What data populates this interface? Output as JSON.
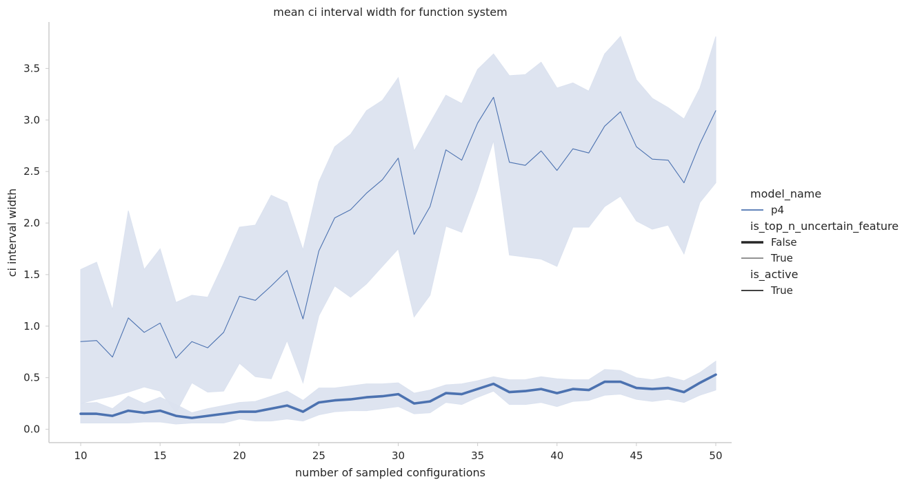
{
  "chart_data": {
    "type": "line",
    "title": "mean ci interval width for function system",
    "xlabel": "number of sampled configurations",
    "ylabel": "ci interval width",
    "xlim": [
      8,
      51
    ],
    "ylim": [
      -0.13,
      3.95
    ],
    "xticks": [
      10,
      15,
      20,
      25,
      30,
      35,
      40,
      45,
      50
    ],
    "yticks": [
      0.0,
      0.5,
      1.0,
      1.5,
      2.0,
      2.5,
      3.0,
      3.5
    ],
    "ytick_labels": [
      "0.0",
      "0.5",
      "1.0",
      "1.5",
      "2.0",
      "2.5",
      "3.0",
      "3.5"
    ],
    "grid": false,
    "legend_position": "right",
    "colors": {
      "series": "#4c72b0",
      "band": "#dbe2ef",
      "axis": "#cccccc",
      "legend_line": "#262626"
    },
    "x": [
      10,
      11,
      12,
      13,
      14,
      15,
      16,
      17,
      18,
      19,
      20,
      21,
      22,
      23,
      24,
      25,
      26,
      27,
      28,
      29,
      30,
      31,
      32,
      33,
      34,
      35,
      36,
      37,
      38,
      39,
      40,
      41,
      42,
      43,
      44,
      45,
      46,
      47,
      48,
      49,
      50
    ],
    "series": [
      {
        "model_name": "p4",
        "is_top_n_uncertain_feature": "False",
        "is_active": "True",
        "line_width": "thick",
        "values": [
          0.15,
          0.15,
          0.13,
          0.18,
          0.16,
          0.18,
          0.13,
          0.11,
          0.13,
          0.15,
          0.17,
          0.17,
          0.2,
          0.23,
          0.17,
          0.26,
          0.28,
          0.29,
          0.31,
          0.32,
          0.34,
          0.25,
          0.27,
          0.35,
          0.34,
          0.39,
          0.44,
          0.36,
          0.37,
          0.39,
          0.35,
          0.39,
          0.38,
          0.46,
          0.46,
          0.4,
          0.39,
          0.4,
          0.36,
          0.45,
          0.53
        ],
        "ci_low": [
          0.06,
          0.06,
          0.06,
          0.06,
          0.07,
          0.07,
          0.05,
          0.06,
          0.06,
          0.06,
          0.1,
          0.08,
          0.08,
          0.1,
          0.08,
          0.14,
          0.17,
          0.18,
          0.18,
          0.2,
          0.22,
          0.15,
          0.16,
          0.26,
          0.24,
          0.31,
          0.37,
          0.24,
          0.24,
          0.26,
          0.22,
          0.27,
          0.28,
          0.33,
          0.34,
          0.29,
          0.27,
          0.29,
          0.26,
          0.33,
          0.38
        ],
        "ci_high": [
          0.25,
          0.26,
          0.2,
          0.32,
          0.25,
          0.31,
          0.24,
          0.16,
          0.2,
          0.23,
          0.26,
          0.27,
          0.32,
          0.37,
          0.28,
          0.4,
          0.4,
          0.42,
          0.44,
          0.44,
          0.45,
          0.35,
          0.38,
          0.43,
          0.44,
          0.47,
          0.51,
          0.48,
          0.48,
          0.51,
          0.49,
          0.48,
          0.48,
          0.58,
          0.57,
          0.5,
          0.48,
          0.51,
          0.47,
          0.55,
          0.66
        ]
      },
      {
        "model_name": "p4",
        "is_top_n_uncertain_feature": "True",
        "is_active": "True",
        "line_width": "thin",
        "values": [
          0.85,
          0.86,
          0.7,
          1.08,
          0.94,
          1.03,
          0.69,
          0.85,
          0.79,
          0.94,
          1.29,
          1.25,
          1.39,
          1.54,
          1.07,
          1.73,
          2.05,
          2.13,
          2.29,
          2.42,
          2.63,
          1.89,
          2.16,
          2.71,
          2.61,
          2.97,
          3.22,
          2.59,
          2.56,
          2.7,
          2.51,
          2.72,
          2.68,
          2.94,
          3.08,
          2.74,
          2.62,
          2.61,
          2.39,
          2.77,
          3.09
        ],
        "ci_low": [
          0.25,
          0.29,
          0.32,
          0.36,
          0.41,
          0.37,
          0.16,
          0.45,
          0.36,
          0.37,
          0.64,
          0.51,
          0.49,
          0.86,
          0.45,
          1.1,
          1.39,
          1.28,
          1.41,
          1.58,
          1.75,
          1.09,
          1.3,
          1.97,
          1.91,
          2.32,
          2.8,
          1.69,
          1.67,
          1.65,
          1.58,
          1.96,
          1.96,
          2.16,
          2.26,
          2.02,
          1.94,
          1.98,
          1.7,
          2.2,
          2.39
        ],
        "ci_high": [
          1.55,
          1.62,
          1.16,
          2.12,
          1.55,
          1.75,
          1.23,
          1.3,
          1.28,
          1.61,
          1.96,
          1.98,
          2.27,
          2.2,
          1.74,
          2.4,
          2.74,
          2.86,
          3.09,
          3.19,
          3.41,
          2.7,
          2.97,
          3.24,
          3.16,
          3.49,
          3.64,
          3.43,
          3.44,
          3.56,
          3.31,
          3.36,
          3.28,
          3.64,
          3.81,
          3.39,
          3.21,
          3.12,
          3.01,
          3.31,
          3.81
        ]
      }
    ],
    "legend": {
      "groups": [
        {
          "title": "model_name",
          "entries": [
            {
              "label": "p4",
              "style": "color"
            }
          ]
        },
        {
          "title": "is_top_n_uncertain_feature",
          "entries": [
            {
              "label": "False",
              "style": "thick"
            },
            {
              "label": "True",
              "style": "thin"
            }
          ]
        },
        {
          "title": "is_active",
          "entries": [
            {
              "label": "True",
              "style": "solid"
            }
          ]
        }
      ]
    }
  }
}
